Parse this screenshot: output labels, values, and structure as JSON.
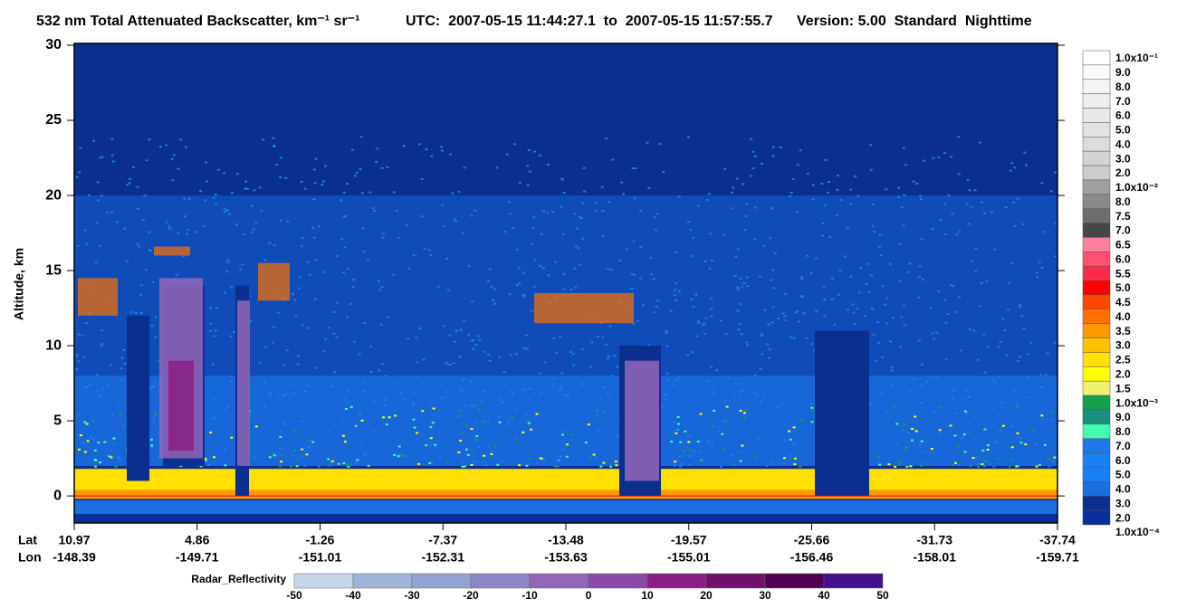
{
  "chart_data": {
    "type": "heatmap",
    "title": "532 nm Total Attenuated Backscatter, km⁻¹ sr⁻¹",
    "utc": "UTC:  2007-05-15 11:44:27.1  to  2007-05-15 11:57:55.7",
    "version": "Version: 5.00  Standard  Nighttime",
    "ylabel": "Altitude, km",
    "ylim": [
      -1.8,
      30
    ],
    "yticks": [
      0,
      5,
      10,
      15,
      20,
      25,
      30
    ],
    "lat_label": "Lat",
    "lon_label": "Lon",
    "lat": [
      10.97,
      4.86,
      -1.26,
      -7.37,
      -13.48,
      -19.57,
      -25.66,
      -31.73,
      -37.74
    ],
    "lon": [
      -148.39,
      -149.71,
      -151.01,
      -152.31,
      -153.63,
      -155.01,
      -156.46,
      -158.01,
      -159.71
    ],
    "colorbar_labels": [
      "1.0x10⁻¹",
      "9.0",
      "8.0",
      "7.0",
      "6.0",
      "5.0",
      "4.0",
      "3.0",
      "2.0",
      "1.0x10⁻²",
      "8.0",
      "7.5",
      "7.0",
      "6.5",
      "6.0",
      "5.5",
      "5.0",
      "4.5",
      "4.0",
      "3.5",
      "3.0",
      "2.5",
      "2.0",
      "1.5",
      "1.0x10⁻³",
      "9.0",
      "8.0",
      "7.0",
      "6.0",
      "5.0",
      "4.0",
      "3.0",
      "2.0",
      "1.0x10⁻⁴"
    ],
    "colorbar_colors": [
      "#ffffff",
      "#fafafa",
      "#f4f4f4",
      "#eeeeee",
      "#e8e8e8",
      "#e2e2e2",
      "#dcdcdc",
      "#d4d4d4",
      "#cccccc",
      "#a0a0a0",
      "#8a8a8a",
      "#6e6e6e",
      "#464646",
      "#ff7fa0",
      "#ff5072",
      "#ff2a4a",
      "#ff0000",
      "#ff4500",
      "#ff7000",
      "#ff9900",
      "#ffc000",
      "#ffe000",
      "#ffff00",
      "#f0f070",
      "#12a050",
      "#1a9080",
      "#40ffb0",
      "#1f78e8",
      "#1a80f0",
      "#1880f0",
      "#1a6ee0",
      "#0a2f8f",
      "#0a2f9a"
    ],
    "radar_label": "Radar_Reflectivity",
    "radar_ticks": [
      -50,
      -40,
      -30,
      -20,
      -10,
      0,
      10,
      20,
      30,
      40,
      50
    ],
    "radar_colors": [
      "#c8d6ea",
      "#9fb4d8",
      "#93a2d2",
      "#8c88c8",
      "#9466b8",
      "#8c4aa8",
      "#8a1e86",
      "#70106a",
      "#500050",
      "#44108a"
    ]
  }
}
